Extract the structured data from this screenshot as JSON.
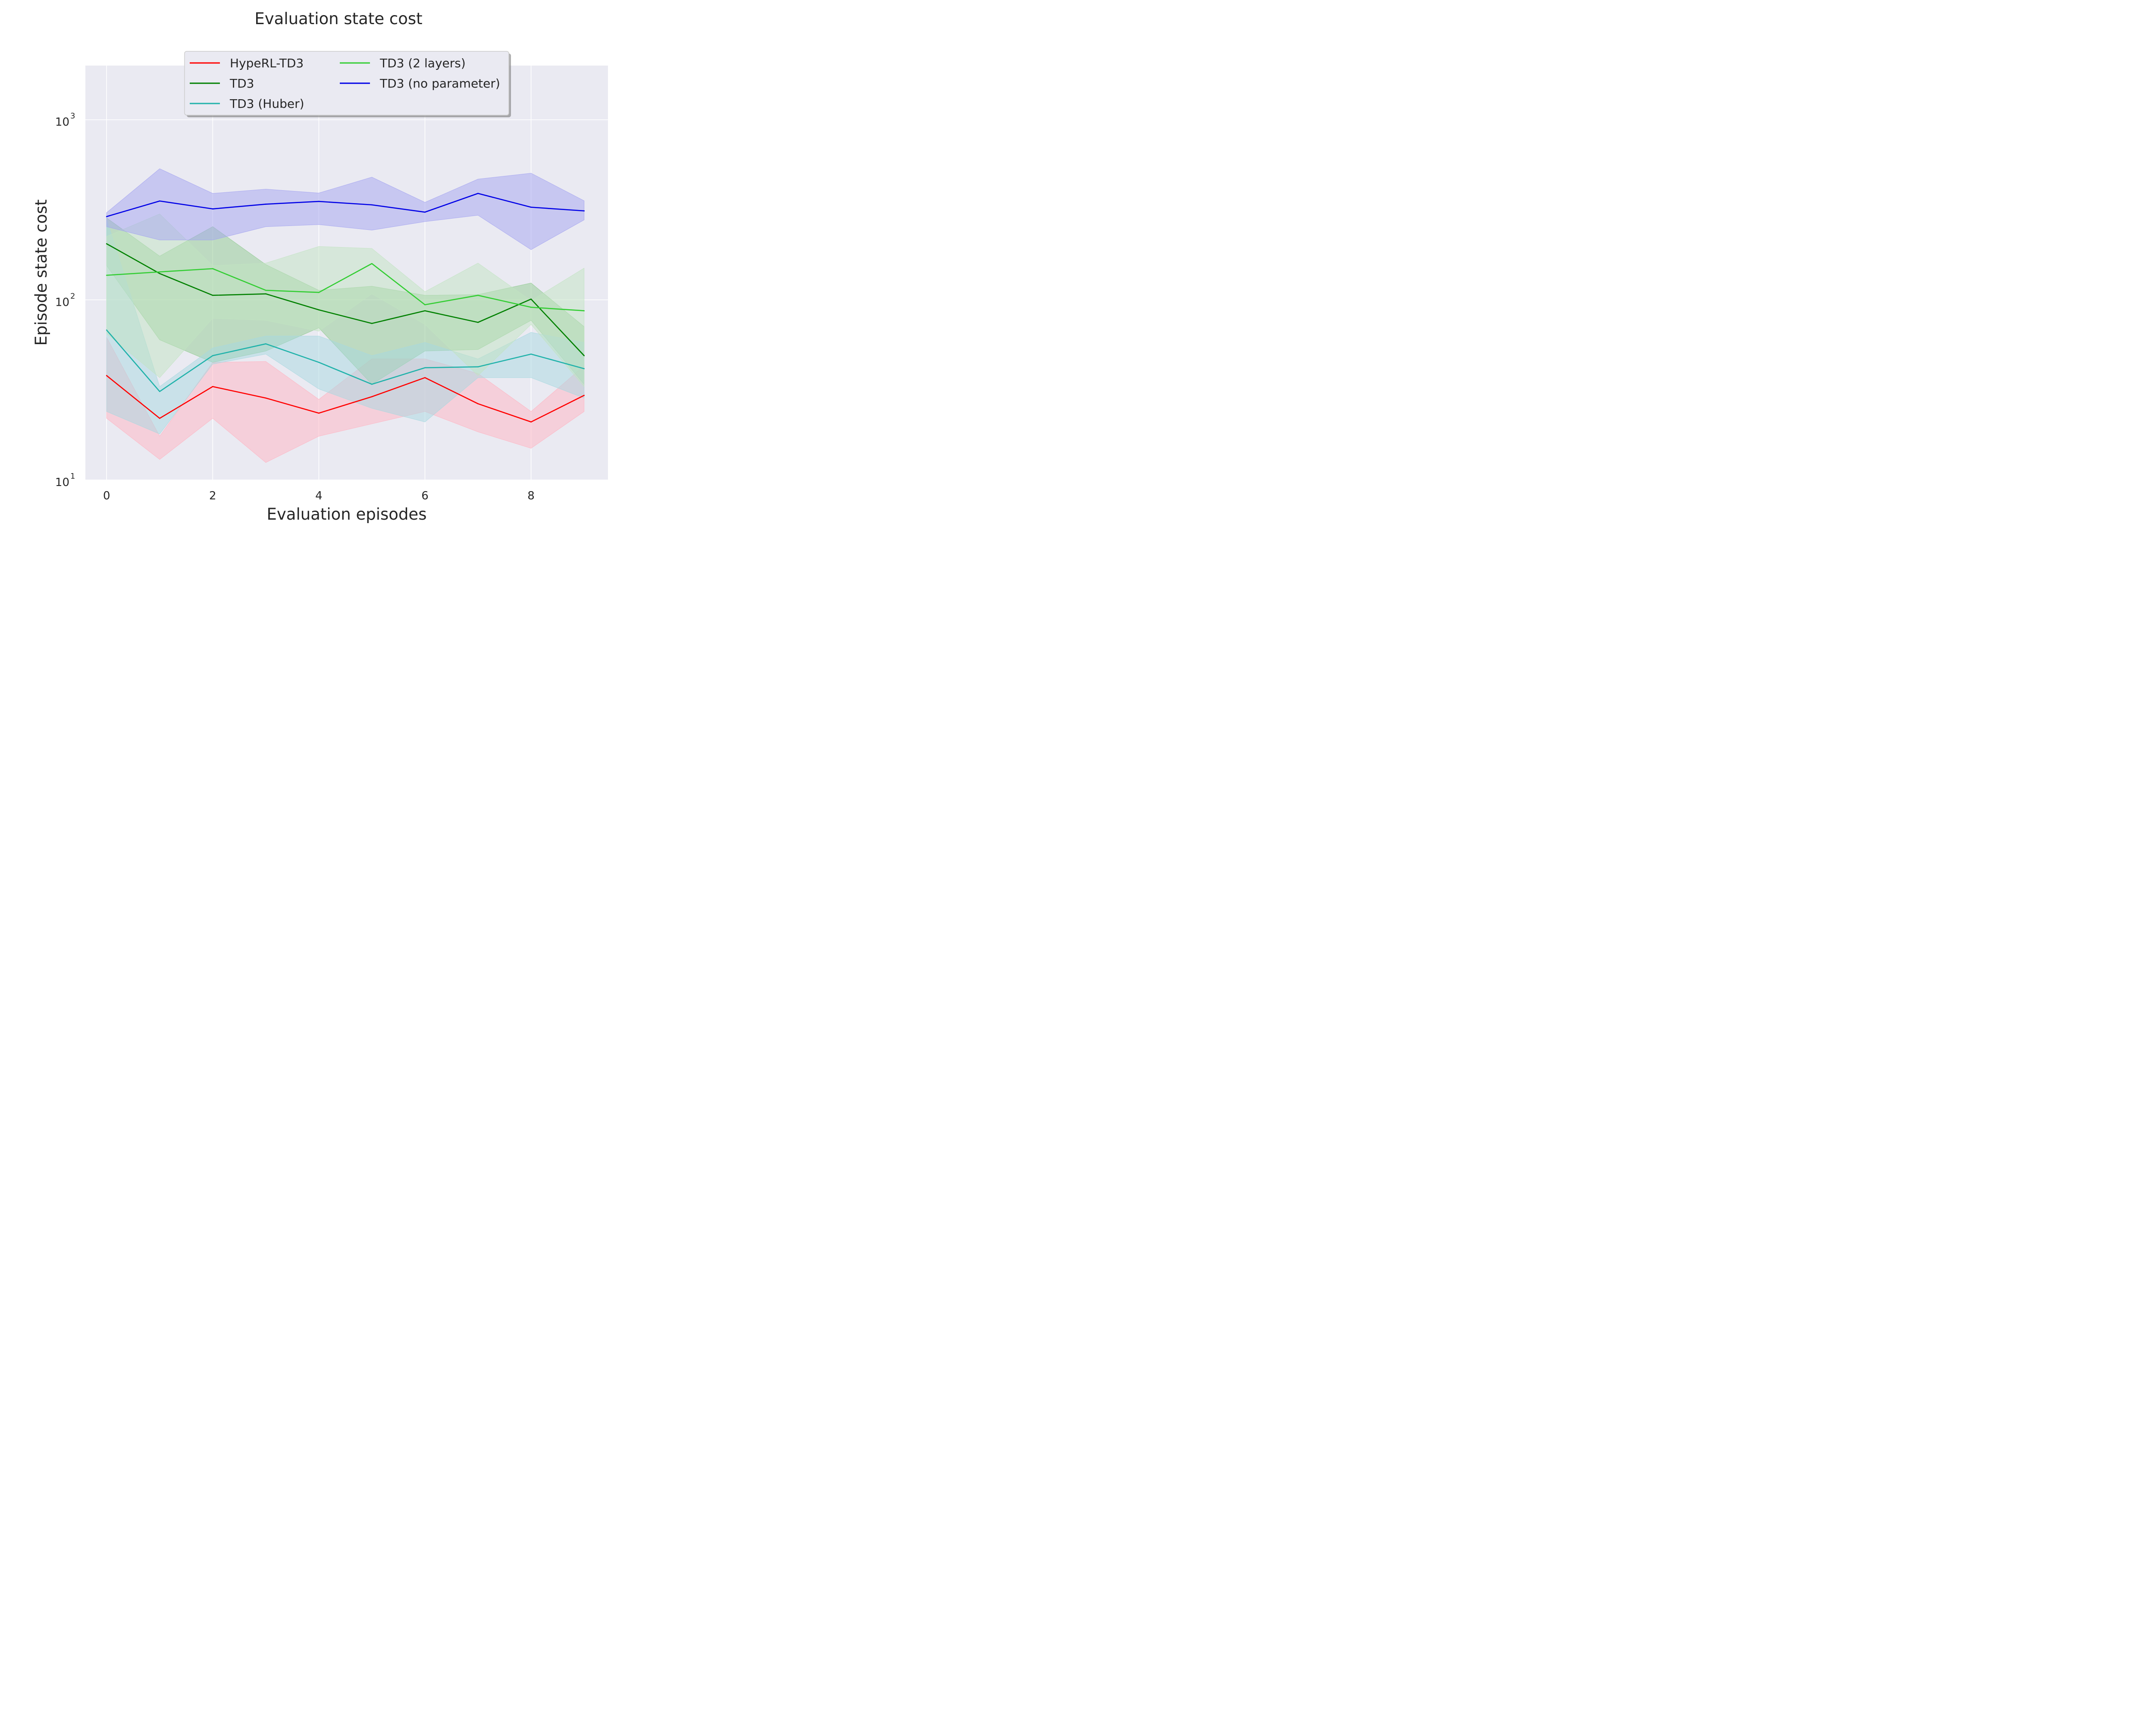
{
  "chart_data": {
    "type": "line",
    "title": "Evaluation state cost",
    "xlabel": "Evaluation episodes",
    "ylabel": "Episode state cost",
    "yscale": "log",
    "xlim": [
      -0.4,
      9.45
    ],
    "ylim": [
      10,
      2000
    ],
    "grid": true,
    "x": [
      0,
      1,
      2,
      3,
      4,
      5,
      6,
      7,
      8,
      9
    ],
    "xticks": [
      0,
      2,
      4,
      6,
      8
    ],
    "xtick_labels": [
      "0",
      "2",
      "4",
      "6",
      "8"
    ],
    "yticks": [
      {
        "value": 10,
        "base": "10",
        "exp": "1"
      },
      {
        "value": 100,
        "base": "10",
        "exp": "2"
      },
      {
        "value": 1000,
        "base": "10",
        "exp": "3"
      }
    ],
    "legend_position": "upper-center",
    "series": [
      {
        "name": "HypeRL-TD3",
        "color": "#ff0000",
        "band_color": "#ffb3c1",
        "values": [
          38,
          22,
          33,
          28.5,
          23.5,
          29,
          37,
          26.5,
          21,
          29.5
        ],
        "lower": [
          22,
          13,
          22,
          12.5,
          17.5,
          20.5,
          24,
          18.5,
          15,
          24
        ],
        "upper": [
          62,
          17.5,
          45,
          45.5,
          28,
          47,
          47,
          39,
          24,
          43
        ]
      },
      {
        "name": "TD3",
        "color": "#008000",
        "band_color": "#8fc98f",
        "values": [
          205,
          140,
          106,
          108,
          88,
          74,
          87,
          75,
          101,
          49
        ],
        "lower": [
          155,
          60,
          45,
          52,
          70,
          34,
          52,
          53,
          77,
          34
        ],
        "upper": [
          285,
          175,
          255,
          157,
          113,
          119,
          106,
          107,
          124,
          71
        ]
      },
      {
        "name": "TD3 (Huber)",
        "color": "#20b2aa",
        "band_color": "#a8d8e0",
        "values": [
          68,
          31,
          49,
          57,
          45,
          34,
          42,
          42.5,
          50,
          41.5
        ],
        "lower": [
          24,
          18,
          44,
          50,
          32,
          25,
          21,
          37,
          37,
          28.5
        ],
        "upper": [
          280,
          33,
          54,
          63,
          63,
          49,
          58,
          47,
          66,
          58
        ]
      },
      {
        "name": "TD3 (2 layers)",
        "color": "#32cd32",
        "band_color": "#c2e3c2",
        "values": [
          137,
          143,
          149,
          113,
          110,
          159,
          94,
          106,
          91,
          87
        ],
        "lower": [
          65,
          37,
          79,
          77,
          67,
          108,
          73,
          38,
          73,
          33
        ],
        "upper": [
          225,
          300,
          155,
          160,
          198,
          193,
          111,
          160,
          99,
          150
        ]
      },
      {
        "name": "TD3 (no parameter)",
        "color": "#0000e6",
        "band_color": "#a3a3f0",
        "values": [
          290,
          354,
          320,
          340,
          352,
          337,
          307,
          390,
          327,
          312
        ],
        "lower": [
          255,
          215,
          215,
          255,
          262,
          244,
          272,
          295,
          190,
          278
        ],
        "upper": [
          305,
          535,
          390,
          412,
          392,
          480,
          348,
          468,
          505,
          355
        ]
      }
    ]
  }
}
